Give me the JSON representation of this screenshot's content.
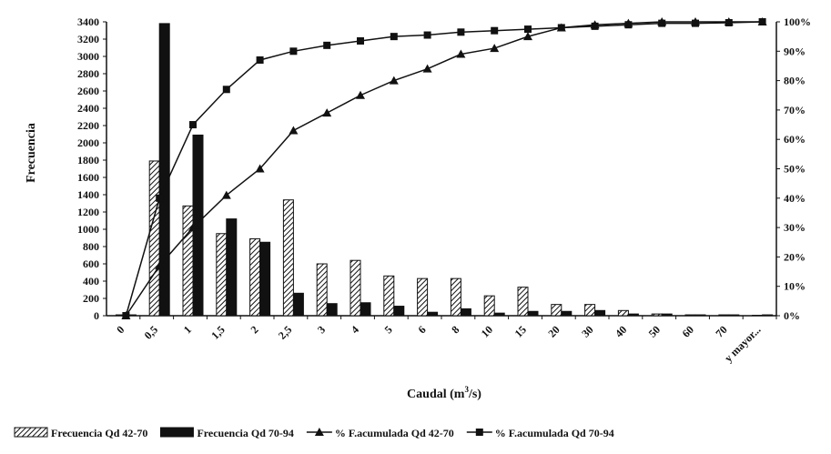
{
  "chart_data": {
    "type": "bar",
    "ylabel": "Frecuencia",
    "xlabel_main": "Caudal (m",
    "xlabel_sup": "3",
    "xlabel_tail": "/s)",
    "categories": [
      "0",
      "0,5",
      "1",
      "1,5",
      "2",
      "2,5",
      "3",
      "4",
      "5",
      "6",
      "8",
      "10",
      "15",
      "20",
      "30",
      "40",
      "50",
      "60",
      "70",
      "y mayor..."
    ],
    "ylim": [
      0,
      3400
    ],
    "yticks": [
      0,
      200,
      400,
      600,
      800,
      1000,
      1200,
      1400,
      1600,
      1800,
      2000,
      2200,
      2400,
      2600,
      2800,
      3000,
      3200,
      3400
    ],
    "y2lim": [
      0,
      100
    ],
    "y2ticks": [
      "0%",
      "10%",
      "20%",
      "30%",
      "40%",
      "50%",
      "60%",
      "70%",
      "80%",
      "90%",
      "100%"
    ],
    "series": [
      {
        "name": "Frecuencia Qd 42-70",
        "kind": "bar",
        "pattern": "hatched",
        "values": [
          10,
          1790,
          1270,
          950,
          890,
          1340,
          600,
          640,
          460,
          430,
          430,
          230,
          330,
          130,
          130,
          60,
          20,
          10,
          10,
          5
        ]
      },
      {
        "name": "Frecuencia Qd 70-94",
        "kind": "bar",
        "pattern": "solid",
        "values": [
          10,
          3380,
          2090,
          1120,
          850,
          260,
          140,
          150,
          110,
          40,
          80,
          30,
          50,
          50,
          60,
          20,
          20,
          10,
          10,
          10
        ]
      },
      {
        "name": "% F.acumulada Qd 42-70",
        "kind": "line",
        "marker": "triangle",
        "axis": "right",
        "values": [
          0,
          17,
          30,
          41,
          50,
          63,
          69,
          75,
          80,
          84,
          89,
          91,
          95,
          98,
          99,
          99.5,
          100,
          100,
          100,
          100
        ]
      },
      {
        "name": "% F.acumulada Qd 70-94",
        "kind": "line",
        "marker": "square",
        "axis": "right",
        "values": [
          0,
          40,
          65,
          77,
          87,
          90,
          92,
          93.5,
          95,
          95.5,
          96.5,
          97,
          97.5,
          98,
          98.5,
          99,
          99.5,
          99.5,
          99.7,
          100
        ]
      }
    ],
    "grid": false,
    "legend_position": "bottom"
  }
}
